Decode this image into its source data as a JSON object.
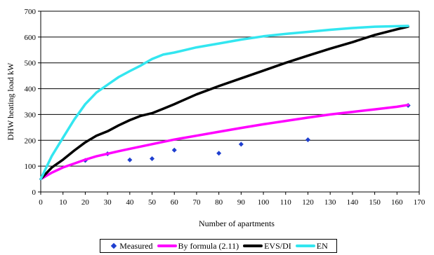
{
  "chart_data": {
    "type": "line",
    "xlabel": "Number of apartments",
    "ylabel": "DHW heating load kW",
    "xlim": [
      0,
      170
    ],
    "ylim": [
      0,
      700
    ],
    "xticks": [
      0,
      10,
      20,
      30,
      40,
      50,
      60,
      70,
      80,
      90,
      100,
      110,
      120,
      130,
      140,
      150,
      160,
      170
    ],
    "yticks": [
      0,
      100,
      200,
      300,
      400,
      500,
      600,
      700
    ],
    "grid": "horizontal",
    "legend_position": "bottom",
    "series": [
      {
        "name": "Measured",
        "kind": "scatter",
        "marker": "diamond",
        "color": "#1f3fd0",
        "x": [
          20,
          30,
          40,
          50,
          60,
          80,
          90,
          120,
          165
        ],
        "y": [
          122,
          148,
          124,
          129,
          162,
          150,
          185,
          202,
          335
        ]
      },
      {
        "name": "By formula (2.11)",
        "kind": "line",
        "color": "#ff00ff",
        "x": [
          0,
          5,
          10,
          15,
          20,
          25,
          30,
          35,
          40,
          50,
          60,
          70,
          80,
          90,
          100,
          110,
          120,
          130,
          140,
          150,
          160,
          165
        ],
        "y": [
          50,
          75,
          95,
          110,
          125,
          138,
          148,
          158,
          167,
          185,
          203,
          218,
          233,
          248,
          262,
          275,
          288,
          300,
          310,
          320,
          330,
          337
        ]
      },
      {
        "name": "EVS/DI",
        "kind": "line",
        "color": "#000000",
        "x": [
          0,
          5,
          10,
          15,
          20,
          25,
          30,
          35,
          40,
          45,
          50,
          55,
          60,
          70,
          80,
          90,
          100,
          110,
          120,
          130,
          140,
          150,
          160,
          165
        ],
        "y": [
          50,
          95,
          125,
          160,
          192,
          218,
          235,
          258,
          278,
          295,
          305,
          322,
          340,
          378,
          410,
          440,
          470,
          500,
          528,
          555,
          580,
          608,
          630,
          640
        ]
      },
      {
        "name": "EN",
        "kind": "line",
        "color": "#33e6f0",
        "x": [
          0,
          5,
          10,
          15,
          20,
          25,
          30,
          35,
          40,
          45,
          50,
          55,
          60,
          70,
          80,
          90,
          100,
          110,
          120,
          130,
          140,
          150,
          160,
          165
        ],
        "y": [
          50,
          140,
          210,
          280,
          340,
          385,
          415,
          445,
          468,
          490,
          515,
          532,
          540,
          560,
          575,
          590,
          603,
          612,
          620,
          628,
          635,
          640,
          642,
          643
        ]
      }
    ]
  }
}
